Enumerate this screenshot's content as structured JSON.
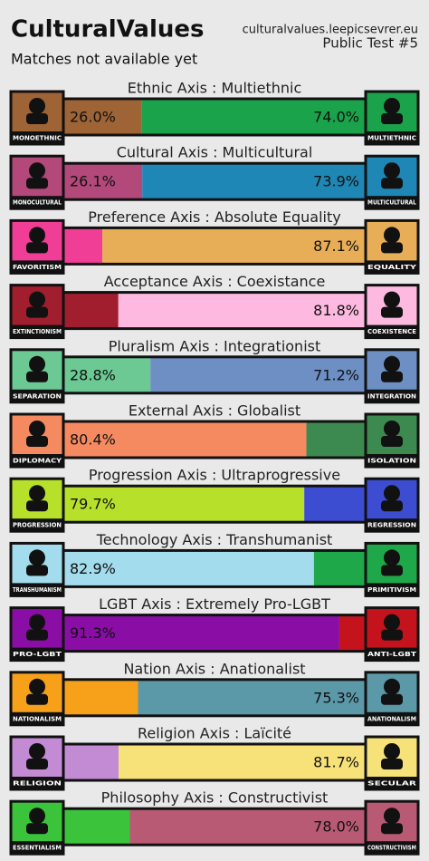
{
  "header": {
    "title": "CulturalValues",
    "subtitle": "Matches not available yet",
    "site": "culturalvalues.leepicsevrer.eu",
    "version": "Public Test #5"
  },
  "axes": [
    {
      "title": "Ethnic Axis : Multiethnic",
      "left_icon": "MONOETHNIC",
      "right_icon": "MULTIETHNIC",
      "left_value": 26.0,
      "right_value": 74.0,
      "left_label": "26.0%",
      "right_label": "74.0%",
      "left_color": "#9e6435",
      "right_color": "#1aa34a"
    },
    {
      "title": "Cultural Axis : Multicultural",
      "left_icon": "MONOCULTURAL",
      "right_icon": "MULTICULTURAL",
      "left_value": 26.1,
      "right_value": 73.9,
      "left_label": "26.1%",
      "right_label": "73.9%",
      "left_color": "#b3487a",
      "right_color": "#1f87b5"
    },
    {
      "title": "Preference Axis : Absolute Equality",
      "left_icon": "FAVORITISM",
      "right_icon": "EQUALITY",
      "left_value": 12.9,
      "right_value": 87.1,
      "right_label": "87.1%",
      "left_color": "#f03d96",
      "right_color": "#e8ad57"
    },
    {
      "title": "Acceptance Axis : Coexistance",
      "left_icon": "EXTINCTIONISM",
      "right_icon": "COEXISTENCE",
      "left_value": 18.2,
      "right_value": 81.8,
      "right_label": "81.8%",
      "left_color": "#a01e2e",
      "right_color": "#fdb9e0"
    },
    {
      "title": "Pluralism Axis : Integrationist",
      "left_icon": "SEPARATION",
      "right_icon": "INTEGRATION",
      "left_value": 28.8,
      "right_value": 71.2,
      "left_label": "28.8%",
      "right_label": "71.2%",
      "left_color": "#6cc994",
      "right_color": "#6d8fc4"
    },
    {
      "title": "External Axis : Globalist",
      "left_icon": "DIPLOMACY",
      "right_icon": "ISOLATION",
      "left_value": 80.4,
      "right_value": 19.6,
      "left_label": "80.4%",
      "left_color": "#f58a61",
      "right_color": "#3d8a50"
    },
    {
      "title": "Progression Axis : Ultraprogressive",
      "left_icon": "PROGRESSION",
      "right_icon": "REGRESSION",
      "left_value": 79.7,
      "right_value": 20.3,
      "left_label": "79.7%",
      "left_color": "#b7e02b",
      "right_color": "#3d4dd1"
    },
    {
      "title": "Technology Axis : Transhumanist",
      "left_icon": "TRANSHUMANISM",
      "right_icon": "PRIMITIVISM",
      "left_value": 82.9,
      "right_value": 17.1,
      "left_label": "82.9%",
      "left_color": "#a3dcec",
      "right_color": "#1fa849"
    },
    {
      "title": "LGBT Axis : Extremely Pro-LGBT",
      "left_icon": "PRO-LGBT",
      "right_icon": "ANTI-LGBT",
      "left_value": 91.3,
      "right_value": 8.7,
      "left_label": "91.3%",
      "left_color": "#8a0ea6",
      "right_color": "#c5131e"
    },
    {
      "title": "Nation Axis : Anationalist",
      "left_icon": "NATIONALISM",
      "right_icon": "ANATIONALISM",
      "left_value": 24.7,
      "right_value": 75.3,
      "right_label": "75.3%",
      "left_color": "#f7a11b",
      "right_color": "#5b98a8"
    },
    {
      "title": "Religion Axis : Laïcité",
      "left_icon": "RELIGION",
      "right_icon": "SECULAR",
      "left_value": 18.3,
      "right_value": 81.7,
      "right_label": "81.7%",
      "left_color": "#c48bd5",
      "right_color": "#f7e27a"
    },
    {
      "title": "Philosophy Axis : Constructivist",
      "left_icon": "ESSENTIALISM",
      "right_icon": "CONSTRUCTIVISM",
      "left_value": 22.0,
      "right_value": 78.0,
      "right_label": "78.0%",
      "left_color": "#3bc43b",
      "right_color": "#b85a73"
    }
  ]
}
